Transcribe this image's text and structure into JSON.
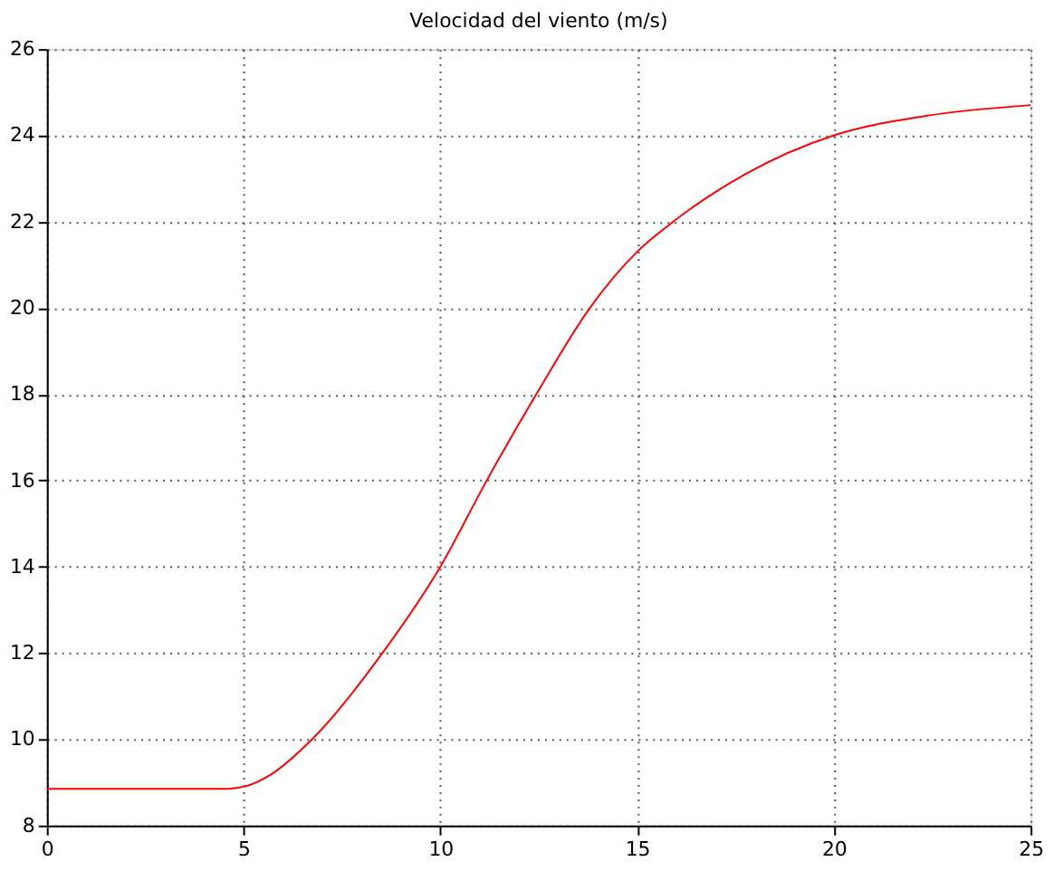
{
  "chart_data": {
    "type": "line",
    "title": "Velocidad del viento (m/s)",
    "x": [
      0,
      4.5,
      5,
      5.67,
      6.74,
      8.53,
      10,
      11.18,
      12.44,
      13.8,
      15,
      15.92,
      17.75,
      20,
      22.34,
      25
    ],
    "series": [
      {
        "color": "#ff0000",
        "values": [
          8.85,
          8.85,
          8.9,
          9.17,
          10,
          12,
          14,
          16,
          18,
          20,
          21.3,
          22,
          23.1,
          24,
          24.45,
          24.7
        ]
      }
    ],
    "xlim": [
      0,
      25
    ],
    "xticks": [
      0,
      5,
      10,
      15,
      20,
      25
    ],
    "ylim": [
      8,
      26
    ],
    "yticks": [
      8,
      10,
      12,
      14,
      16,
      18,
      20,
      22,
      24,
      26
    ],
    "grid": true,
    "marker": "none",
    "line_style": "solid"
  }
}
